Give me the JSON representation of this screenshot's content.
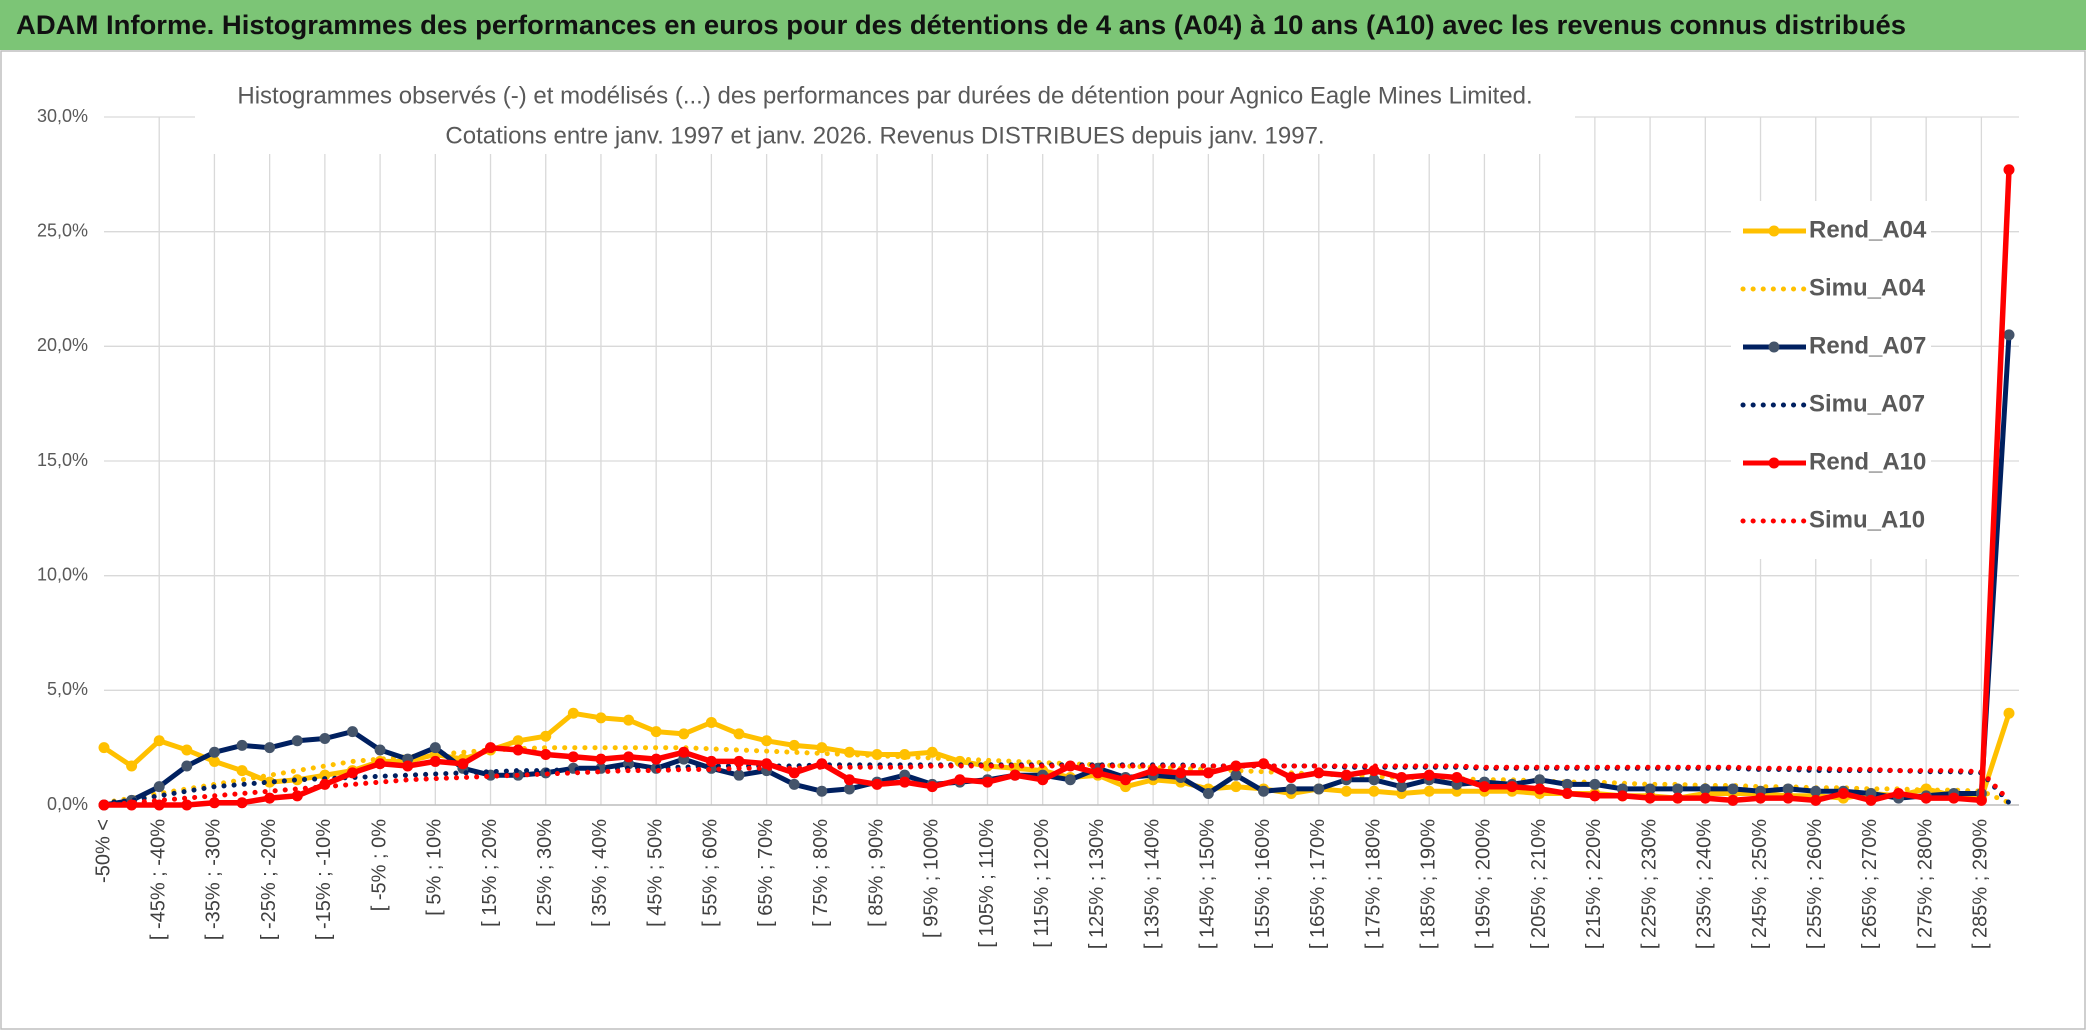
{
  "chart_data": {
    "type": "line",
    "header": "ADAM Informe. Histogrammes des performances en euros pour des détentions de 4 ans (A04) à 10 ans (A10) avec les revenus connus distribués",
    "title": "Histogrammes observés (-) et modélisés (...) des performances par durées de détention pour Agnico Eagle Mines Limited.",
    "subtitle": "Cotations entre janv. 1997 et janv. 2026. Revenus DISTRIBUES depuis janv. 1997.",
    "categories": [
      "-50% <",
      null,
      "[ -45% ; -40%",
      null,
      "[ -35% ; -30%",
      null,
      "[ -25% ; -20%",
      null,
      "[ -15% ; -10%",
      null,
      "[ -5% ; 0%",
      null,
      "[ 5% ; 10%",
      null,
      "[ 15% ; 20%",
      null,
      "[ 25% ; 30%",
      null,
      "[ 35% ; 40%",
      null,
      "[ 45% ; 50%",
      null,
      "[ 55% ; 60%",
      null,
      "[ 65% ; 70%",
      null,
      "[ 75% ; 80%",
      null,
      "[ 85% ; 90%",
      null,
      "[ 95% ; 100%",
      null,
      "[ 105% ; 110%",
      null,
      "[ 115% ; 120%",
      null,
      "[ 125% ; 130%",
      null,
      "[ 135% ; 140%",
      null,
      "[ 145% ; 150%",
      null,
      "[ 155% ; 160%",
      null,
      "[ 165% ; 170%",
      null,
      "[ 175% ; 180%",
      null,
      "[ 185% ; 190%",
      null,
      "[ 195% ; 200%",
      null,
      "[ 205% ; 210%",
      null,
      "[ 215% ; 220%",
      null,
      "[ 225% ; 230%",
      null,
      "[ 235% ; 240%",
      null,
      "[ 245% ; 250%",
      null,
      "[ 255% ; 260%",
      null,
      "[ 265% ; 270%",
      null,
      "[ 275% ; 280%",
      null,
      "[ 285% ; 290%",
      null
    ],
    "series": [
      {
        "name": "Rend_A04",
        "color": "#ffc000",
        "style": "solid",
        "marker": true,
        "values": [
          2.5,
          1.7,
          2.8,
          2.4,
          1.9,
          1.5,
          1.0,
          1.1,
          1.3,
          1.5,
          1.9,
          1.9,
          2.2,
          2.0,
          2.4,
          2.8,
          3.0,
          4.0,
          3.8,
          3.7,
          3.2,
          3.1,
          3.6,
          3.1,
          2.8,
          2.6,
          2.5,
          2.3,
          2.2,
          2.2,
          2.3,
          1.9,
          1.7,
          1.6,
          1.5,
          1.2,
          1.3,
          0.8,
          1.1,
          1.0,
          0.7,
          0.8,
          0.7,
          0.5,
          0.7,
          0.6,
          0.6,
          0.5,
          0.6,
          0.6,
          0.6,
          0.6,
          0.5,
          0.5,
          0.5,
          0.4,
          0.4,
          0.3,
          0.5,
          0.5,
          0.5,
          0.4,
          0.4,
          0.3,
          0.5,
          0.4,
          0.7,
          0.4,
          0.3,
          4.0
        ]
      },
      {
        "name": "Simu_A04",
        "color": "#ffc000",
        "style": "dotted",
        "marker": false,
        "values": [
          0.1,
          0.3,
          0.5,
          0.7,
          0.9,
          1.1,
          1.3,
          1.5,
          1.7,
          1.9,
          2.0,
          2.1,
          2.2,
          2.3,
          2.4,
          2.45,
          2.5,
          2.5,
          2.5,
          2.5,
          2.5,
          2.5,
          2.45,
          2.4,
          2.35,
          2.3,
          2.25,
          2.2,
          2.15,
          2.1,
          2.05,
          2.0,
          1.95,
          1.9,
          1.85,
          1.8,
          1.75,
          1.7,
          1.65,
          1.6,
          1.55,
          1.5,
          1.45,
          1.4,
          1.35,
          1.3,
          1.25,
          1.2,
          1.2,
          1.15,
          1.1,
          1.1,
          1.05,
          1.0,
          1.0,
          0.95,
          0.9,
          0.9,
          0.85,
          0.85,
          0.8,
          0.8,
          0.75,
          0.75,
          0.7,
          0.7,
          0.65,
          0.65,
          0.6,
          0.1
        ]
      },
      {
        "name": "Rend_A07",
        "color": "#002060",
        "style": "solid",
        "marker": true,
        "marker_color": "#44546a",
        "values": [
          0.0,
          0.2,
          0.8,
          1.7,
          2.3,
          2.6,
          2.5,
          2.8,
          2.9,
          3.2,
          2.4,
          2.0,
          2.5,
          1.6,
          1.3,
          1.3,
          1.4,
          1.6,
          1.6,
          1.8,
          1.6,
          2.0,
          1.6,
          1.3,
          1.5,
          0.9,
          0.6,
          0.7,
          1.0,
          1.3,
          0.9,
          1.0,
          1.1,
          1.3,
          1.3,
          1.1,
          1.6,
          1.2,
          1.3,
          1.2,
          0.5,
          1.3,
          0.6,
          0.7,
          0.7,
          1.1,
          1.1,
          0.8,
          1.1,
          0.9,
          1.0,
          0.9,
          1.1,
          0.9,
          0.9,
          0.7,
          0.7,
          0.7,
          0.7,
          0.7,
          0.6,
          0.7,
          0.6,
          0.6,
          0.5,
          0.3,
          0.4,
          0.5,
          0.5,
          20.5
        ]
      },
      {
        "name": "Simu_A07",
        "color": "#002060",
        "style": "dotted",
        "marker": false,
        "values": [
          0.1,
          0.2,
          0.4,
          0.6,
          0.8,
          0.9,
          1.0,
          1.1,
          1.15,
          1.2,
          1.25,
          1.3,
          1.35,
          1.4,
          1.45,
          1.5,
          1.5,
          1.55,
          1.6,
          1.6,
          1.65,
          1.65,
          1.7,
          1.7,
          1.7,
          1.7,
          1.75,
          1.75,
          1.75,
          1.75,
          1.75,
          1.75,
          1.75,
          1.75,
          1.75,
          1.75,
          1.75,
          1.75,
          1.75,
          1.75,
          1.7,
          1.7,
          1.7,
          1.7,
          1.7,
          1.65,
          1.65,
          1.65,
          1.65,
          1.65,
          1.6,
          1.6,
          1.6,
          1.6,
          1.6,
          1.6,
          1.6,
          1.6,
          1.6,
          1.6,
          1.55,
          1.55,
          1.5,
          1.5,
          1.5,
          1.5,
          1.45,
          1.45,
          1.4,
          0.1
        ]
      },
      {
        "name": "Rend_A10",
        "color": "#ff0000",
        "style": "solid",
        "marker": true,
        "values": [
          0.0,
          0.0,
          0.0,
          0.0,
          0.1,
          0.1,
          0.3,
          0.4,
          0.9,
          1.4,
          1.8,
          1.7,
          1.9,
          1.8,
          2.5,
          2.4,
          2.2,
          2.1,
          2.0,
          2.1,
          2.0,
          2.3,
          1.9,
          1.9,
          1.8,
          1.4,
          1.8,
          1.1,
          0.9,
          1.0,
          0.8,
          1.1,
          1.0,
          1.3,
          1.1,
          1.7,
          1.4,
          1.1,
          1.5,
          1.4,
          1.4,
          1.7,
          1.8,
          1.2,
          1.4,
          1.3,
          1.5,
          1.2,
          1.3,
          1.2,
          0.8,
          0.8,
          0.7,
          0.5,
          0.4,
          0.4,
          0.3,
          0.3,
          0.3,
          0.2,
          0.3,
          0.3,
          0.2,
          0.5,
          0.2,
          0.5,
          0.3,
          0.3,
          0.2,
          27.7
        ]
      },
      {
        "name": "Simu_A10",
        "color": "#ff0000",
        "style": "dotted",
        "marker": false,
        "values": [
          0.0,
          0.1,
          0.2,
          0.3,
          0.4,
          0.5,
          0.6,
          0.7,
          0.8,
          0.9,
          1.0,
          1.1,
          1.15,
          1.2,
          1.25,
          1.3,
          1.35,
          1.4,
          1.45,
          1.5,
          1.5,
          1.55,
          1.55,
          1.6,
          1.6,
          1.6,
          1.65,
          1.65,
          1.65,
          1.65,
          1.7,
          1.7,
          1.7,
          1.7,
          1.7,
          1.7,
          1.7,
          1.7,
          1.7,
          1.7,
          1.7,
          1.7,
          1.7,
          1.7,
          1.7,
          1.7,
          1.7,
          1.7,
          1.7,
          1.7,
          1.65,
          1.65,
          1.65,
          1.65,
          1.65,
          1.65,
          1.65,
          1.65,
          1.65,
          1.65,
          1.6,
          1.6,
          1.6,
          1.55,
          1.55,
          1.5,
          1.5,
          1.5,
          1.45,
          0.2
        ]
      }
    ],
    "ylim": [
      0,
      30
    ],
    "yticks": [
      {
        "value": 0,
        "label": "0,0%"
      },
      {
        "value": 5,
        "label": "5,0%"
      },
      {
        "value": 10,
        "label": "10,0%"
      },
      {
        "value": 15,
        "label": "15,0%"
      },
      {
        "value": 20,
        "label": "20,0%"
      },
      {
        "value": 25,
        "label": "25,0%"
      },
      {
        "value": 30,
        "label": "30,0%"
      }
    ],
    "grid": true,
    "legend": "right"
  }
}
